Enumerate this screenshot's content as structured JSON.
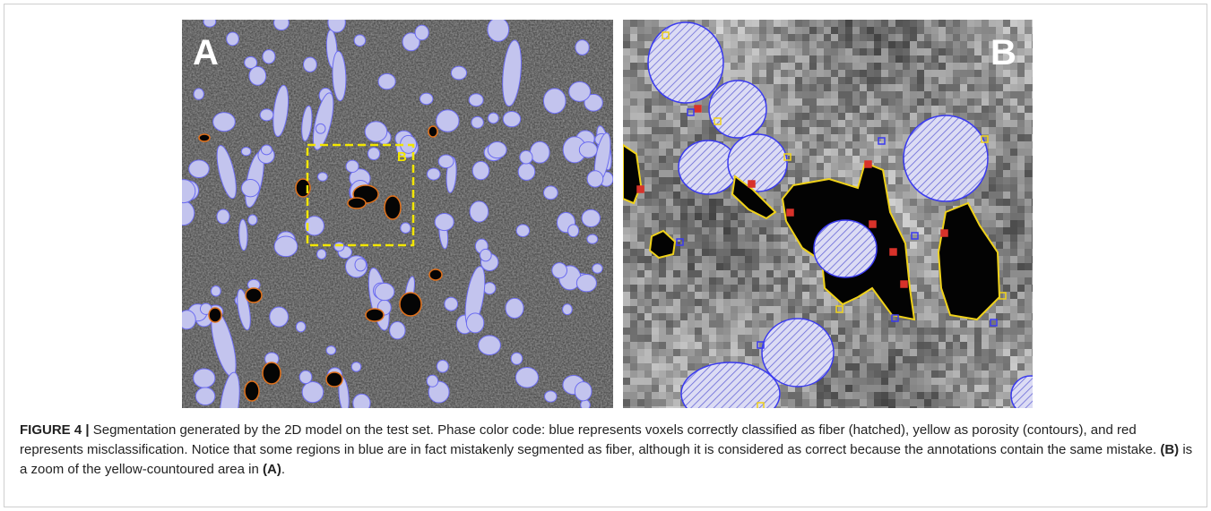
{
  "figure": {
    "panels": [
      {
        "label": "A",
        "inset_label": "B"
      },
      {
        "label": "B"
      }
    ],
    "caption": {
      "label": "FIGURE 4 |",
      "text": "Segmentation generated by the 2D model on the test set. Phase color code: blue represents voxels correctly classified as fiber (hatched), yellow as porosity (contours), and red represents misclassification. Notice that some regions in blue are in fact mistakenly segmented as fiber, although it is considered as correct because the annotations contain the same mistake.",
      "ref_b": "(B)",
      "text_2": "is a zoom of the yellow-countoured area in",
      "ref_a": "(A)",
      "end": "."
    }
  }
}
